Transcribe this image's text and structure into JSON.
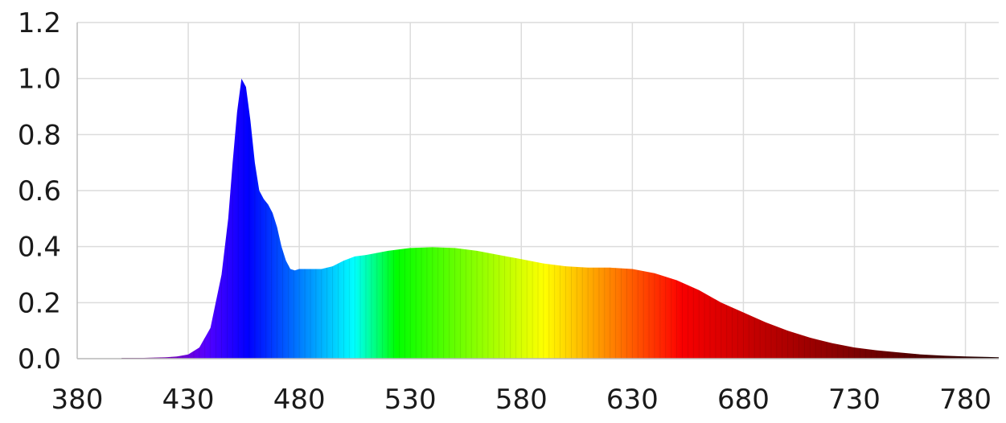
{
  "chart_data": {
    "type": "area",
    "title": "",
    "xlabel": "",
    "ylabel": "",
    "xlim": [
      380,
      795
    ],
    "ylim": [
      0.0,
      1.2
    ],
    "grid": true,
    "legend": "none",
    "fill": "spectral-gradient",
    "x_ticks": [
      "380",
      "430",
      "480",
      "530",
      "580",
      "630",
      "680",
      "730",
      "780"
    ],
    "y_ticks": [
      "0.0",
      "0.2",
      "0.4",
      "0.6",
      "0.8",
      "1.0",
      "1.2"
    ],
    "series": [
      {
        "x": [
          400,
          405,
          410,
          415,
          420,
          425,
          430,
          435,
          440,
          445,
          448,
          450,
          452,
          454,
          456,
          458,
          460,
          462,
          464,
          466,
          468,
          470,
          472,
          474,
          476,
          478,
          480,
          485,
          490,
          495,
          500,
          505,
          510,
          520,
          530,
          540,
          550,
          560,
          570,
          580,
          590,
          600,
          610,
          620,
          630,
          640,
          650,
          660,
          670,
          680,
          690,
          700,
          710,
          720,
          730,
          740,
          750,
          760,
          770,
          780,
          790,
          795
        ],
        "y": [
          0.003,
          0.003,
          0.003,
          0.004,
          0.005,
          0.008,
          0.015,
          0.04,
          0.11,
          0.3,
          0.5,
          0.7,
          0.88,
          1.0,
          0.97,
          0.85,
          0.7,
          0.6,
          0.57,
          0.55,
          0.52,
          0.47,
          0.4,
          0.35,
          0.32,
          0.315,
          0.32,
          0.32,
          0.32,
          0.33,
          0.35,
          0.365,
          0.37,
          0.385,
          0.395,
          0.398,
          0.395,
          0.385,
          0.37,
          0.355,
          0.34,
          0.33,
          0.325,
          0.325,
          0.32,
          0.305,
          0.28,
          0.245,
          0.2,
          0.165,
          0.13,
          0.1,
          0.075,
          0.055,
          0.04,
          0.03,
          0.022,
          0.015,
          0.011,
          0.008,
          0.006,
          0.005
        ]
      }
    ]
  }
}
